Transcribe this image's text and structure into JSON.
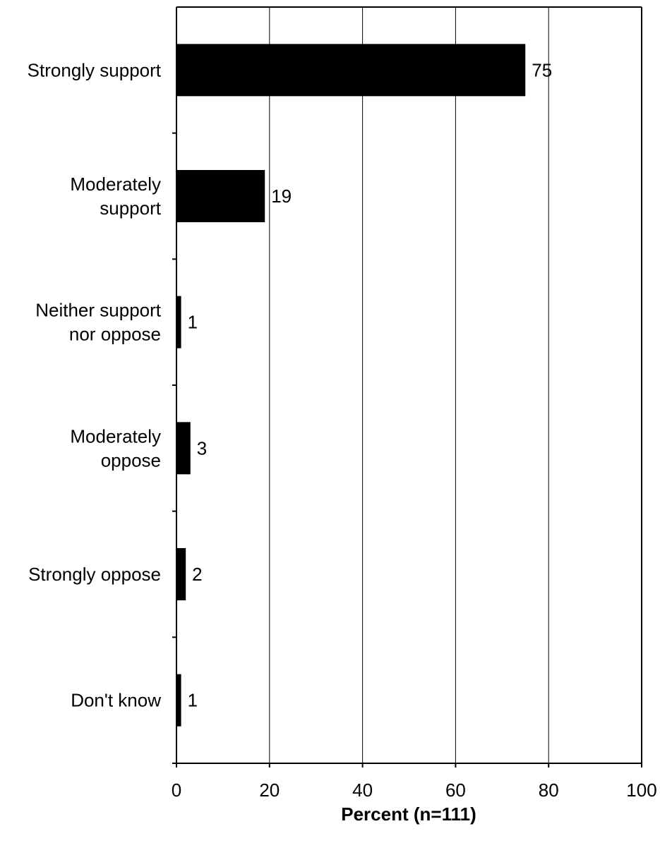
{
  "chart_data": {
    "type": "bar",
    "orientation": "horizontal",
    "categories": [
      [
        "Strongly support"
      ],
      [
        "Moderately",
        "support"
      ],
      [
        "Neither support",
        "nor oppose"
      ],
      [
        "Moderately",
        "oppose"
      ],
      [
        "Strongly oppose"
      ],
      [
        "Don't know"
      ]
    ],
    "values": [
      75,
      19,
      1,
      3,
      2,
      1
    ],
    "data_labels": [
      "75",
      "19",
      "1",
      "3",
      "2",
      "1"
    ],
    "xlabel": "Percent (n=111)",
    "xlim": [
      0,
      100
    ],
    "xticks": [
      0,
      20,
      40,
      60,
      80,
      100
    ],
    "xtick_labels": [
      "0",
      "20",
      "40",
      "60",
      "80",
      "100"
    ],
    "grid": "vertical",
    "legend": "none",
    "bar_color": "#000000"
  }
}
